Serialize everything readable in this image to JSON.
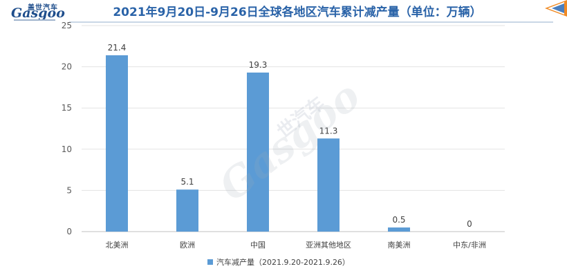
{
  "header": {
    "logo_cn": "盖世汽车",
    "logo_en": "Gasgoo",
    "title": "2021年9月20日-9月26日全球各地区汽车累计减产量（单位：万辆）"
  },
  "watermark": {
    "text_cn": "世汽车",
    "text_en": "Gasgoo"
  },
  "colors": {
    "bar": "#5b9bd5",
    "title": "#2a63a8",
    "accent": "#f08a24"
  },
  "chart_data": {
    "type": "bar",
    "title": "2021年9月20日-9月26日全球各地区汽车累计减产量（单位：万辆）",
    "categories": [
      "北美洲",
      "欧洲",
      "中国",
      "亚洲其他地区",
      "南美洲",
      "中东/非洲"
    ],
    "series": [
      {
        "name": "汽车减产量（2021.9.20-2021.9.26）",
        "values": [
          21.4,
          5.1,
          19.3,
          11.3,
          0.5,
          0
        ]
      }
    ],
    "data_labels": [
      "21.4",
      "5.1",
      "19.3",
      "11.3",
      "0.5",
      "0"
    ],
    "ylim": [
      0,
      25
    ],
    "yticks": [
      0,
      5,
      10,
      15,
      20,
      25
    ],
    "grid": true,
    "legend_position": "bottom"
  }
}
